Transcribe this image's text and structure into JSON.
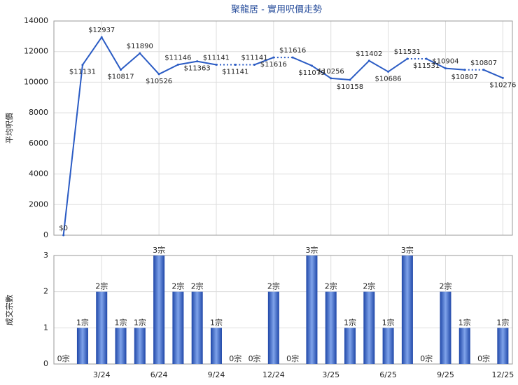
{
  "chart_data": [
    {
      "type": "line",
      "title": "聚龍居 - 實用呎價走勢",
      "y_label": "平均呎價",
      "categories": [
        null,
        null,
        "3/24",
        null,
        null,
        "6/24",
        null,
        null,
        "9/24",
        null,
        null,
        "12/24",
        null,
        null,
        "3/25",
        null,
        null,
        "6/25",
        null,
        null,
        "9/25",
        null,
        null,
        "12/25"
      ],
      "series": [
        {
          "name": "平均呎價",
          "color": "#2a5bc4",
          "values": [
            0,
            11131,
            12937,
            10817,
            11890,
            10526,
            11146,
            11363,
            11141,
            11141,
            11141,
            11616,
            11616,
            11079,
            10256,
            10158,
            11402,
            10686,
            11531,
            11531,
            10904,
            10807,
            10807,
            10276
          ],
          "value_labels": [
            "$0",
            "$11131",
            "$12937",
            "$10817",
            "$11890",
            "$10526",
            "$11146",
            "$11363",
            "$11141",
            "$11141",
            "$11141",
            "$11616",
            "$11616",
            "$11079",
            "$10256",
            "$10158",
            "$11402",
            "$10686",
            "$11531",
            "$11531",
            "$10904",
            "$10807",
            "$10807",
            "$10276"
          ]
        }
      ],
      "ylim": [
        0,
        14000
      ],
      "yticks": [
        0,
        2000,
        4000,
        6000,
        8000,
        10000,
        12000,
        14000
      ],
      "grid": true
    },
    {
      "type": "bar",
      "y_label": "成交宗數",
      "categories": [
        null,
        null,
        "3/24",
        null,
        null,
        "6/24",
        null,
        null,
        "9/24",
        null,
        null,
        "12/24",
        null,
        null,
        "3/25",
        null,
        null,
        "6/25",
        null,
        null,
        "9/25",
        null,
        null,
        "12/25"
      ],
      "series": [
        {
          "name": "成交宗數",
          "color": "#3563c8",
          "values": [
            0,
            1,
            2,
            1,
            1,
            3,
            2,
            2,
            1,
            0,
            0,
            2,
            0,
            3,
            2,
            1,
            2,
            1,
            3,
            0,
            2,
            1,
            0,
            1
          ],
          "value_labels": [
            "0宗",
            "1宗",
            "2宗",
            "1宗",
            "1宗",
            "3宗",
            "2宗",
            "2宗",
            "1宗",
            "0宗",
            "0宗",
            "2宗",
            "0宗",
            "3宗",
            "2宗",
            "1宗",
            "2宗",
            "1宗",
            "3宗",
            "0宗",
            "2宗",
            "1宗",
            "0宗",
            "1宗"
          ]
        }
      ],
      "ylim": [
        0,
        3
      ],
      "yticks": [
        0,
        1,
        2,
        3
      ],
      "grid": true
    }
  ]
}
